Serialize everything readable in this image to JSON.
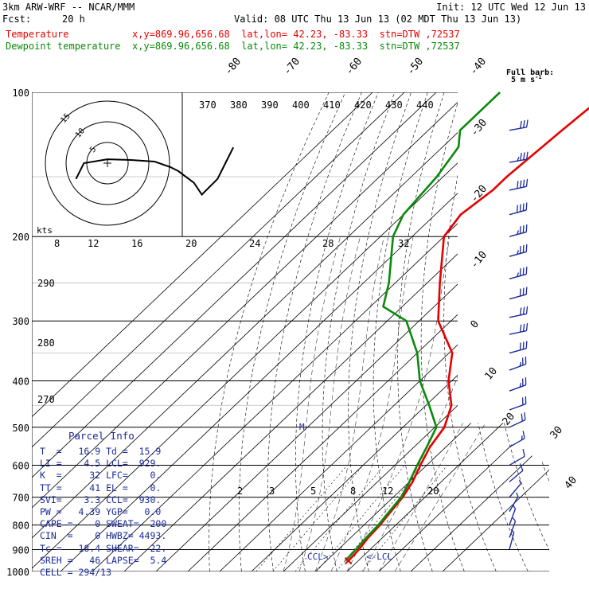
{
  "header": {
    "model": "3km ARW-WRF -- NCAR/MMM",
    "init": "Init: 12 UTC Wed 12 Jun 13",
    "fcst_label": "Fcst:",
    "fcst_value": "20 h",
    "valid": "Valid: 08 UTC Thu 13 Jun 13 (02 MDT Thu 13 Jun 13)",
    "temp_line": "Temperature           x,y=869.96,656.68  lat,lon= 42.23, -83.33  stn=DTW ,72537",
    "dew_line": "Dewpoint temperature  x,y=869.96,656.68  lat,lon= 42.23, -83.33  stn=DTW ,72537",
    "wind_title_1": "Full barb:",
    "wind_title_2": "5 m s",
    "wind_title_unit": "-1"
  },
  "parcel": {
    "title": "Parcel Info",
    "rows": [
      "T  =   16.9 Td =  15.9",
      "LI =    4.5 LCL=  929.",
      "K  =     32 LFC=    0.",
      "TT =     41 EL =    0.",
      "SVI=    3.3 CCL=  930.",
      "PW =   4.39 YGP=   0.0",
      "CAPE =    0 SWEAT=  200",
      "CIN  =    0 HWBZ= 4493.",
      "Tc =   18.4 SHEAR=  22.",
      "SREH =   46 LAPSE=  5.4",
      "CELL = 294/13"
    ]
  },
  "chart_data": {
    "type": "skew-t",
    "y_axis": "pressure (hPa)",
    "y_log_scale": true,
    "ylim": [
      1000,
      100
    ],
    "pressure_ticks": [
      100,
      200,
      300,
      400,
      500,
      600,
      700,
      800,
      900,
      1000
    ],
    "isotherm_labels": [
      -80,
      -70,
      -60,
      -50,
      -40,
      -30,
      -20,
      -10,
      0,
      10,
      20,
      30,
      40
    ],
    "theta_labels": [
      370,
      380,
      390,
      400,
      410,
      420,
      430,
      440
    ],
    "theta_left_labels": [
      290,
      280,
      270
    ],
    "mixing_ratio_labels_upper": [
      8,
      12,
      16,
      20,
      24,
      28,
      32
    ],
    "mixing_ratio_labels_lower": [
      2,
      3,
      5,
      8,
      12,
      20
    ],
    "upper_panel_label": "kts",
    "annotations": [
      "CCL",
      "LCL",
      "M"
    ],
    "hodograph": {
      "ring_labels": [
        "5",
        "10",
        "15"
      ],
      "trace": [
        [
          -4,
          -2
        ],
        [
          -3,
          0
        ],
        [
          0,
          0.5
        ],
        [
          3,
          0.4
        ],
        [
          6,
          0.2
        ],
        [
          8,
          -0.5
        ],
        [
          9,
          -1
        ],
        [
          11,
          -2.5
        ],
        [
          12,
          -4
        ],
        [
          14,
          -2
        ],
        [
          15,
          0
        ],
        [
          16,
          2
        ]
      ]
    },
    "series": [
      {
        "name": "Temperature",
        "color": "#e60000",
        "profile": [
          [
            100,
            -56
          ],
          [
            120,
            -58
          ],
          [
            150,
            -60
          ],
          [
            160,
            -60
          ],
          [
            180,
            -62
          ],
          [
            200,
            -60
          ],
          [
            250,
            -46
          ],
          [
            300,
            -34
          ],
          [
            350,
            -19
          ],
          [
            400,
            -11
          ],
          [
            450,
            -2
          ],
          [
            500,
            3
          ],
          [
            550,
            5
          ],
          [
            600,
            8
          ],
          [
            650,
            11
          ],
          [
            700,
            13
          ],
          [
            750,
            14
          ],
          [
            800,
            15
          ],
          [
            850,
            15.5
          ],
          [
            900,
            16.5
          ],
          [
            950,
            16.9
          ]
        ]
      },
      {
        "name": "Dewpoint temperature",
        "color": "#0a8a0a",
        "profile": [
          [
            100,
            -90
          ],
          [
            120,
            -90
          ],
          [
            130,
            -85
          ],
          [
            150,
            -82
          ],
          [
            180,
            -80
          ],
          [
            200,
            -76
          ],
          [
            250,
            -62
          ],
          [
            280,
            -56
          ],
          [
            300,
            -44
          ],
          [
            350,
            -30
          ],
          [
            400,
            -20
          ],
          [
            450,
            -9
          ],
          [
            500,
            0.5
          ],
          [
            550,
            4
          ],
          [
            600,
            7
          ],
          [
            650,
            10
          ],
          [
            700,
            12.5
          ],
          [
            750,
            13.5
          ],
          [
            800,
            14.5
          ],
          [
            850,
            14.9
          ],
          [
            900,
            15.5
          ],
          [
            950,
            15.9
          ]
        ]
      }
    ],
    "wind_barbs": [
      {
        "p": 120,
        "spd": 30,
        "dir": 260
      },
      {
        "p": 140,
        "spd": 35,
        "dir": 260
      },
      {
        "p": 160,
        "spd": 40,
        "dir": 258
      },
      {
        "p": 180,
        "spd": 40,
        "dir": 255
      },
      {
        "p": 200,
        "spd": 35,
        "dir": 255
      },
      {
        "p": 220,
        "spd": 35,
        "dir": 255
      },
      {
        "p": 245,
        "spd": 35,
        "dir": 255
      },
      {
        "p": 270,
        "spd": 30,
        "dir": 255
      },
      {
        "p": 295,
        "spd": 30,
        "dir": 258
      },
      {
        "p": 320,
        "spd": 30,
        "dir": 258
      },
      {
        "p": 350,
        "spd": 30,
        "dir": 255
      },
      {
        "p": 380,
        "spd": 25,
        "dir": 250
      },
      {
        "p": 420,
        "spd": 25,
        "dir": 250
      },
      {
        "p": 460,
        "spd": 20,
        "dir": 250
      },
      {
        "p": 500,
        "spd": 20,
        "dir": 245
      },
      {
        "p": 550,
        "spd": 15,
        "dir": 240
      },
      {
        "p": 600,
        "spd": 10,
        "dir": 240
      },
      {
        "p": 650,
        "spd": 10,
        "dir": 230
      },
      {
        "p": 700,
        "spd": 5,
        "dir": 220
      },
      {
        "p": 750,
        "spd": 5,
        "dir": 210
      },
      {
        "p": 800,
        "spd": 5,
        "dir": 200
      },
      {
        "p": 850,
        "spd": 5,
        "dir": 200
      },
      {
        "p": 900,
        "spd": 5,
        "dir": 195
      }
    ],
    "colors": {
      "temperature": "#e60000",
      "dewpoint": "#0a8a0a",
      "wind": "#1a2a9a",
      "grid": "#000000",
      "parcel_text": "#1a2a9a"
    }
  }
}
